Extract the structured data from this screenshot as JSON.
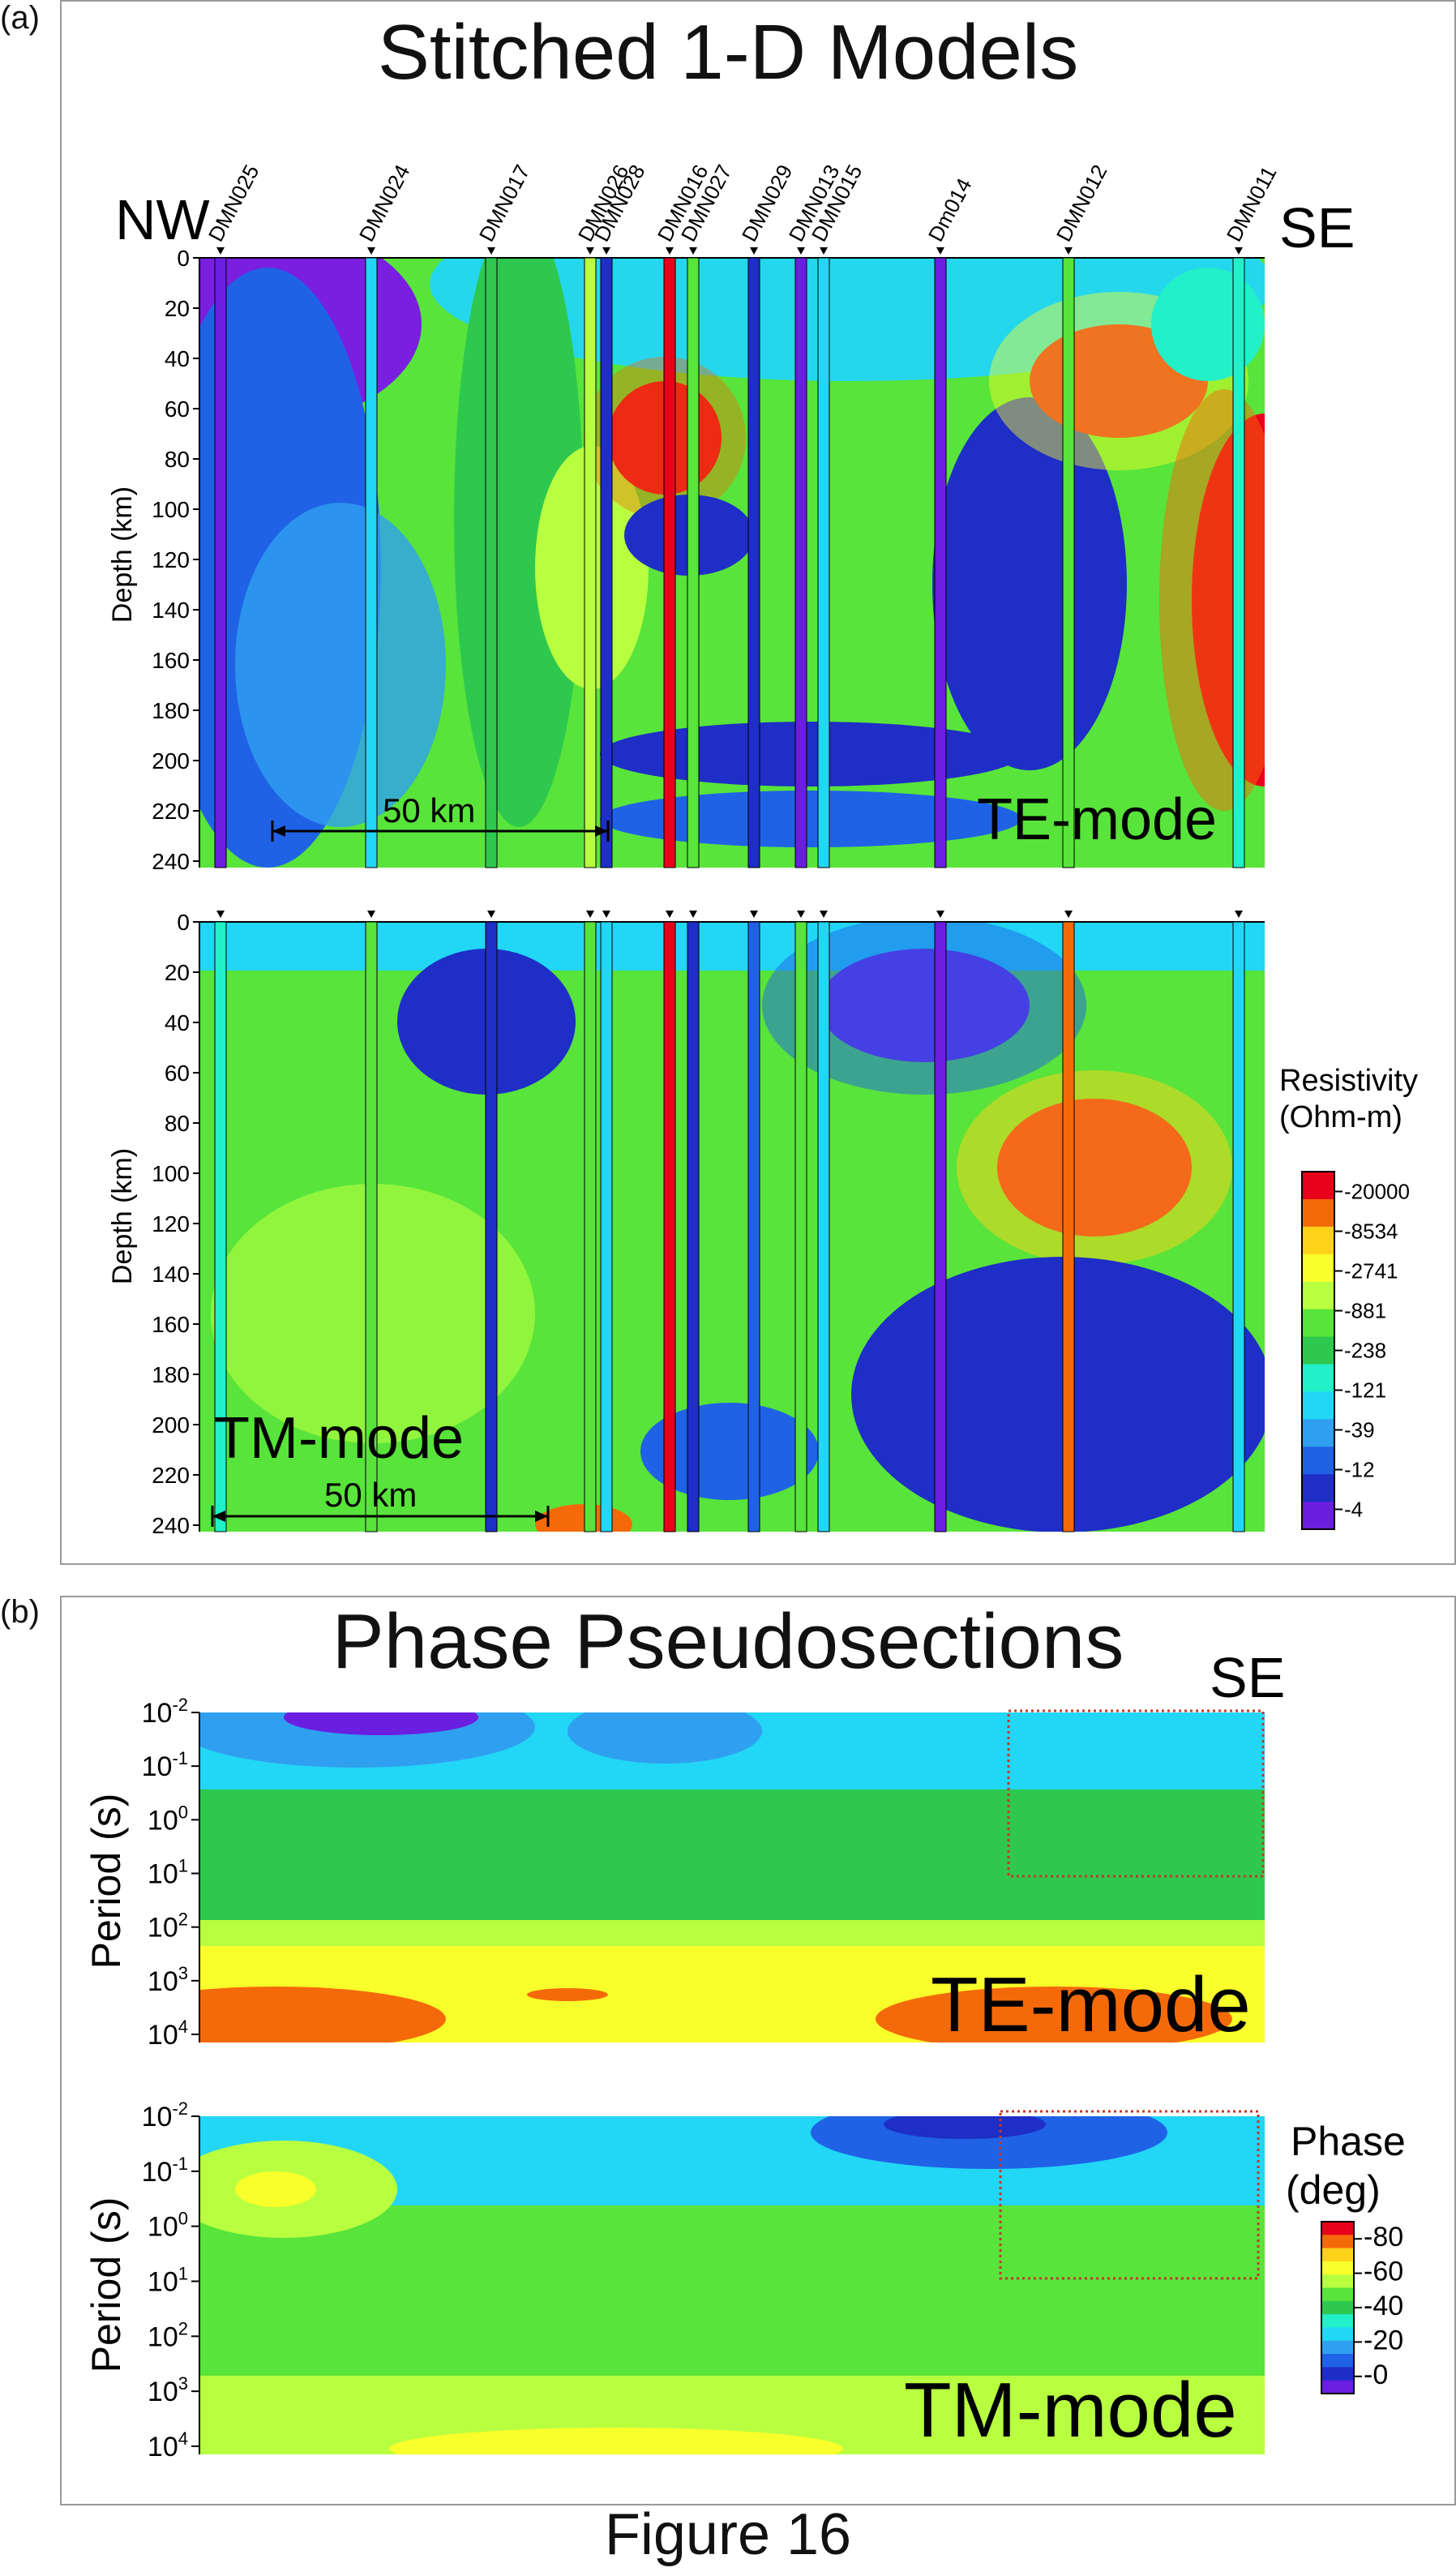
{
  "panel_a": {
    "label": "(a)",
    "title": "Stitched 1-D Models",
    "nw": "NW",
    "se": "SE",
    "te_mode": "TE-mode",
    "tm_mode": "TM-mode",
    "scale_bar": "50 km",
    "colorbar_title_1": "Resistivity",
    "colorbar_title_2": "(Ohm-m)",
    "colorbar_colors": [
      "#e8001a",
      "#f46a0a",
      "#ffd21a",
      "#f8ff2a",
      "#b8ff40",
      "#58e43a",
      "#2ec84e",
      "#22f0c8",
      "#22d6f6",
      "#2fa0f0",
      "#1f62e6",
      "#1e2ec6",
      "#6a1ee0"
    ]
  },
  "panel_b": {
    "label": "(b)",
    "title": "Phase Pseudosections",
    "se": "SE",
    "te_mode": "TE-mode",
    "tm_mode": "TM-mode",
    "colorbar_title_1": "Phase",
    "colorbar_title_2": "(deg)",
    "colorbar_colors": [
      "#e8001a",
      "#f46a0a",
      "#ffd21a",
      "#f8ff2a",
      "#b8ff40",
      "#58e43a",
      "#2ec84e",
      "#22f0c8",
      "#22d6f6",
      "#2fa0f0",
      "#1f62e6",
      "#1e2ec6",
      "#6a1ee0"
    ]
  },
  "figure_caption": "Figure 16",
  "chart_data": [
    {
      "type": "heatmap",
      "title": "Stitched 1-D Models",
      "subtitle": "TE-mode",
      "ylabel": "Depth (km)",
      "xlabel": "",
      "ylim": [
        0,
        240
      ],
      "yticks": [
        0,
        20,
        40,
        60,
        80,
        100,
        120,
        140,
        160,
        180,
        200,
        220,
        240
      ],
      "stations": [
        "DMN025",
        "DMN024",
        "DMN017",
        "DMN026",
        "DMN028",
        "DMN016",
        "DMN027",
        "DMN029",
        "DMN013",
        "DMN015",
        "Dm014",
        "DMN012",
        "DMN011"
      ],
      "colorbar": {
        "label": "Resistivity (Ohm-m)",
        "ticks": [
          "20000",
          "8534",
          "2741",
          "881",
          "238",
          "121",
          "39",
          "12",
          "4"
        ]
      },
      "annotations": [
        "NW",
        "SE",
        "50 km"
      ]
    },
    {
      "type": "heatmap",
      "title": "",
      "subtitle": "TM-mode",
      "ylabel": "Depth (km)",
      "xlabel": "",
      "ylim": [
        0,
        240
      ],
      "yticks": [
        0,
        20,
        40,
        60,
        80,
        100,
        120,
        140,
        160,
        180,
        200,
        220,
        240
      ],
      "colorbar": {
        "label": "Resistivity (Ohm-m)",
        "ticks": [
          "20000",
          "8534",
          "2741",
          "881",
          "238",
          "121",
          "39",
          "12",
          "4"
        ]
      },
      "annotations": [
        "50 km"
      ]
    },
    {
      "type": "heatmap",
      "title": "Phase Pseudosections",
      "subtitle": "TE-mode",
      "ylabel": "Period (s)",
      "xlabel": "",
      "yscale": "log",
      "ylim": [
        0.01,
        10000
      ],
      "yticks": [
        {
          "base": "10",
          "exp": "-2"
        },
        {
          "base": "10",
          "exp": "-1"
        },
        {
          "base": "10",
          "exp": "0"
        },
        {
          "base": "10",
          "exp": "1"
        },
        {
          "base": "10",
          "exp": "2"
        },
        {
          "base": "10",
          "exp": "3"
        },
        {
          "base": "10",
          "exp": "4"
        }
      ],
      "annotations": [
        "SE"
      ]
    },
    {
      "type": "heatmap",
      "title": "",
      "subtitle": "TM-mode",
      "ylabel": "Period (s)",
      "xlabel": "",
      "yscale": "log",
      "ylim": [
        0.01,
        10000
      ],
      "yticks": [
        {
          "base": "10",
          "exp": "-2"
        },
        {
          "base": "10",
          "exp": "-1"
        },
        {
          "base": "10",
          "exp": "0"
        },
        {
          "base": "10",
          "exp": "1"
        },
        {
          "base": "10",
          "exp": "2"
        },
        {
          "base": "10",
          "exp": "3"
        },
        {
          "base": "10",
          "exp": "4"
        }
      ],
      "colorbar": {
        "label": "Phase (deg)",
        "ticks": [
          "80",
          "60",
          "40",
          "20",
          "0"
        ]
      }
    }
  ]
}
